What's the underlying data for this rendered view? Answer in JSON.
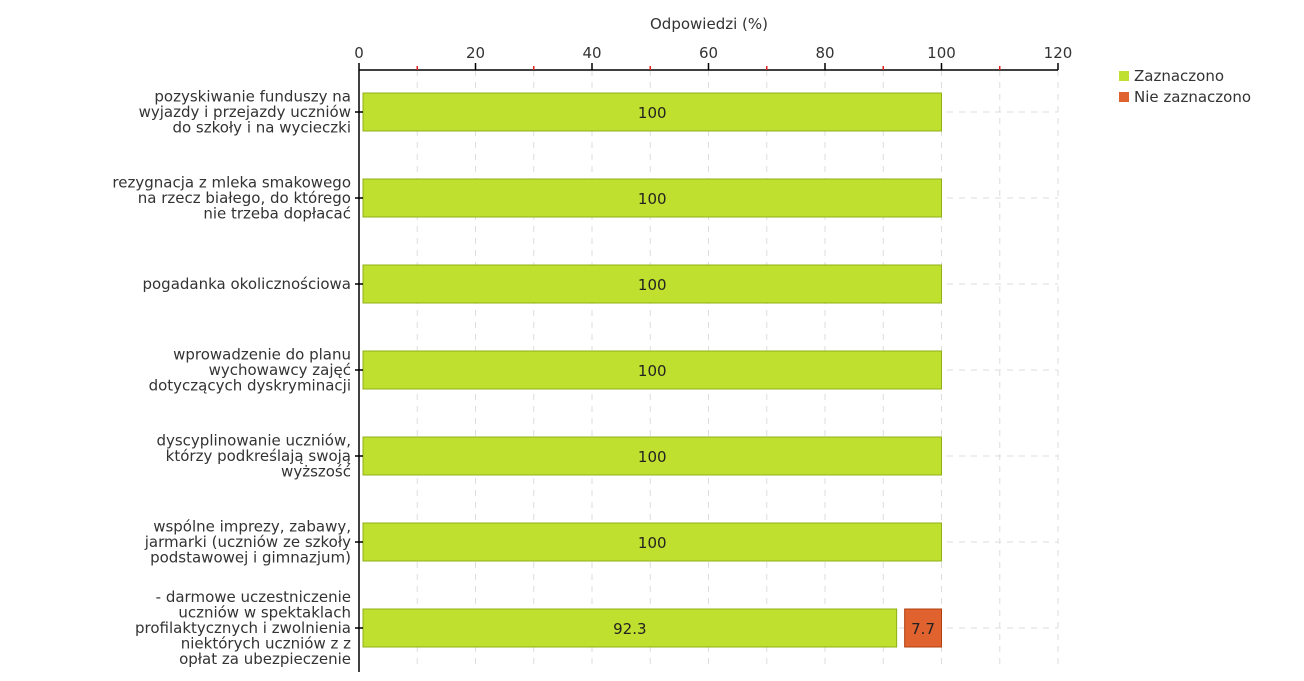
{
  "chart_data": {
    "type": "bar",
    "orientation": "horizontal",
    "stacked": true,
    "title": "",
    "xlabel": "Odpowiedzi (%)",
    "ylabel": "",
    "xlim": [
      0,
      120
    ],
    "xticks": [
      "0",
      "20",
      "40",
      "60",
      "80",
      "100",
      "120"
    ],
    "grid": true,
    "legend_position": "top-right",
    "categories": [
      [
        "pozyskiwanie funduszy na",
        "wyjazdy i przejazdy uczniów",
        "do szkoły i na wycieczki"
      ],
      [
        "rezygnacja z mleka smakowego",
        "na rzecz białego, do którego",
        "nie trzeba dopłacać"
      ],
      [
        "pogadanka okolicznościowa"
      ],
      [
        "wprowadzenie do planu",
        "wychowawcy zajęć",
        "dotyczących dyskryminacji"
      ],
      [
        "dyscyplinowanie uczniów,",
        "którzy podkreślają swoją",
        "wyższość"
      ],
      [
        "wspólne imprezy, zabawy,",
        "jarmarki (uczniów ze szkoły",
        "podstawowej i gimnazjum)"
      ],
      [
        "- darmowe uczestniczenie",
        "uczniów w spektaklach",
        "profilaktycznych i zwolnienia",
        "niektórych uczniów z z",
        "opłat za ubezpieczenie"
      ]
    ],
    "series": [
      {
        "name": "Zaznaczono",
        "color": "#bfe02e",
        "border": "#8fb018",
        "values": [
          100,
          100,
          100,
          100,
          100,
          100,
          92.3
        ],
        "labels": [
          "100",
          "100",
          "100",
          "100",
          "100",
          "100",
          "92.3"
        ]
      },
      {
        "name": "Nie zaznaczono",
        "color": "#e0622f",
        "border": "#b04010",
        "values": [
          0,
          0,
          0,
          0,
          0,
          0,
          7.7
        ],
        "labels": [
          "",
          "",
          "",
          "",
          "",
          "",
          "7.7"
        ]
      }
    ]
  }
}
